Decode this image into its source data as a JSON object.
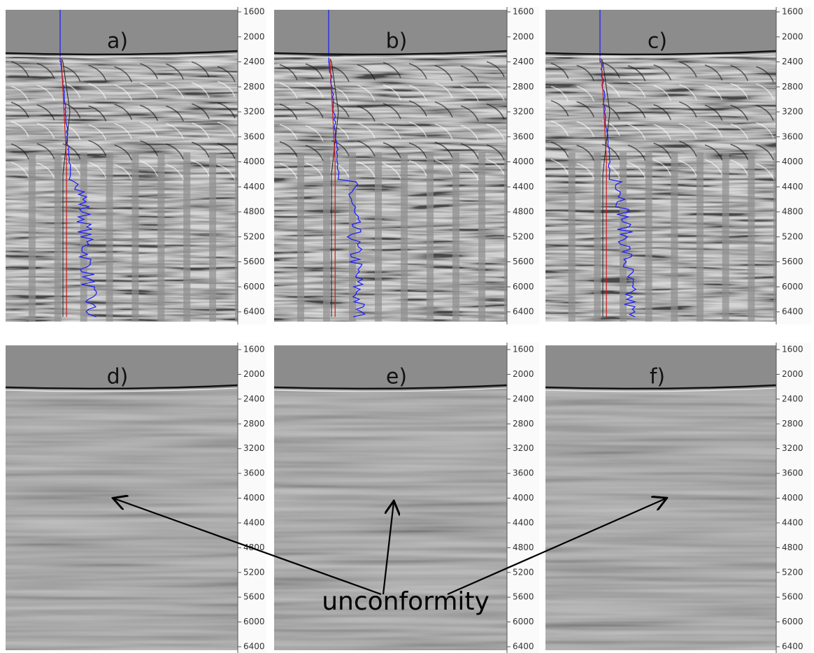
{
  "panels": [
    {
      "label": "a)"
    },
    {
      "label": "b)"
    },
    {
      "label": "c)"
    },
    {
      "label": "d)"
    },
    {
      "label": "e)"
    },
    {
      "label": "f)"
    }
  ],
  "depth_ticks": [
    1600,
    2000,
    2400,
    2800,
    3200,
    3600,
    4000,
    4400,
    4800,
    5200,
    5600,
    6000,
    6400
  ],
  "annotation": "unconformity"
}
